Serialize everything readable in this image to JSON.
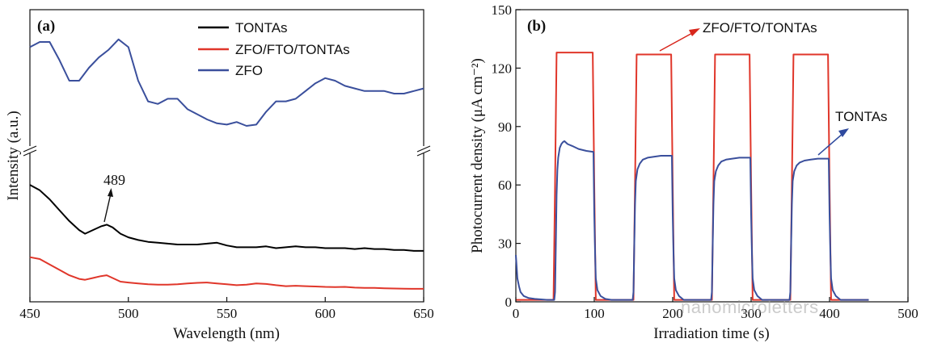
{
  "watermark": "nanomicroletters",
  "colors": {
    "black": "#000000",
    "red": "#e0362a",
    "blue": "#3a4f9c",
    "arrow_red": "#d8261c",
    "arrow_blue": "#2f4a9e"
  },
  "chart_data": [
    {
      "type": "line",
      "panel_label": "(a)",
      "xlabel": "Wavelength (nm)",
      "ylabel": "Intensity (a.u.)",
      "xlim": [
        450,
        650
      ],
      "xticks": [
        450,
        500,
        550,
        600,
        650
      ],
      "xtick_labels": [
        "450",
        "500",
        "550",
        "600",
        "650"
      ],
      "y_ticks_shown": false,
      "axis_break": true,
      "legend_position": "top-right",
      "annotation": {
        "text": "489",
        "x": 489
      },
      "series": [
        {
          "name": "TONTAs",
          "color": "#000000",
          "x": [
            450,
            455,
            460,
            465,
            470,
            475,
            478,
            482,
            486,
            489,
            492,
            496,
            500,
            505,
            510,
            515,
            520,
            525,
            530,
            535,
            540,
            545,
            550,
            555,
            560,
            565,
            570,
            575,
            580,
            585,
            590,
            595,
            600,
            605,
            610,
            615,
            620,
            625,
            630,
            635,
            640,
            645,
            650
          ],
          "y": [
            0.62,
            0.59,
            0.54,
            0.48,
            0.42,
            0.37,
            0.35,
            0.37,
            0.39,
            0.4,
            0.385,
            0.35,
            0.33,
            0.315,
            0.305,
            0.3,
            0.295,
            0.29,
            0.29,
            0.29,
            0.295,
            0.3,
            0.285,
            0.275,
            0.275,
            0.275,
            0.28,
            0.27,
            0.275,
            0.28,
            0.275,
            0.275,
            0.27,
            0.27,
            0.27,
            0.265,
            0.27,
            0.265,
            0.265,
            0.26,
            0.26,
            0.255,
            0.255
          ]
        },
        {
          "name": "ZFO/FTO/TONTAs",
          "color": "#e0362a",
          "x": [
            450,
            455,
            460,
            465,
            470,
            475,
            478,
            482,
            486,
            489,
            492,
            496,
            500,
            505,
            510,
            515,
            520,
            525,
            530,
            535,
            540,
            545,
            550,
            555,
            560,
            565,
            570,
            575,
            580,
            585,
            590,
            595,
            600,
            605,
            610,
            615,
            620,
            625,
            630,
            635,
            640,
            645,
            650
          ],
          "y": [
            0.22,
            0.21,
            0.18,
            0.15,
            0.12,
            0.1,
            0.095,
            0.105,
            0.115,
            0.12,
            0.105,
            0.085,
            0.08,
            0.075,
            0.07,
            0.068,
            0.068,
            0.07,
            0.075,
            0.078,
            0.08,
            0.075,
            0.07,
            0.065,
            0.068,
            0.075,
            0.072,
            0.065,
            0.06,
            0.062,
            0.06,
            0.058,
            0.056,
            0.055,
            0.056,
            0.052,
            0.05,
            0.05,
            0.048,
            0.047,
            0.046,
            0.045,
            0.045
          ]
        },
        {
          "name": "ZFO",
          "color": "#3a4f9c",
          "x": [
            450,
            455,
            460,
            465,
            470,
            475,
            480,
            485,
            490,
            495,
            500,
            505,
            510,
            515,
            520,
            525,
            530,
            535,
            540,
            545,
            550,
            555,
            560,
            565,
            570,
            575,
            580,
            585,
            590,
            595,
            600,
            605,
            610,
            615,
            620,
            625,
            630,
            635,
            640,
            645,
            650
          ],
          "y": [
            0.38,
            0.4,
            0.4,
            0.33,
            0.25,
            0.25,
            0.3,
            0.34,
            0.37,
            0.41,
            0.38,
            0.25,
            0.17,
            0.16,
            0.18,
            0.18,
            0.14,
            0.12,
            0.1,
            0.085,
            0.08,
            0.09,
            0.075,
            0.08,
            0.13,
            0.17,
            0.17,
            0.18,
            0.21,
            0.24,
            0.26,
            0.25,
            0.23,
            0.22,
            0.21,
            0.21,
            0.21,
            0.2,
            0.2,
            0.21,
            0.22
          ]
        }
      ]
    },
    {
      "type": "line",
      "panel_label": "(b)",
      "xlabel": "Irradiation time (s)",
      "ylabel": "Photocurrent density (μA cm⁻²)",
      "xlim": [
        0,
        500
      ],
      "ylim": [
        0,
        150
      ],
      "xticks": [
        0,
        100,
        200,
        300,
        400,
        500
      ],
      "xtick_labels": [
        "0",
        "100",
        "200",
        "300",
        "400",
        "500"
      ],
      "yticks": [
        0,
        30,
        60,
        90,
        120,
        150
      ],
      "ytick_labels": [
        "0",
        "30",
        "60",
        "90",
        "120",
        "150"
      ],
      "annotations": [
        {
          "text": "ZFO/FTO/TONTAs",
          "target_x": 178,
          "target_y": 128
        },
        {
          "text": "TONTAs",
          "target_x": 378,
          "target_y": 75
        }
      ],
      "series": [
        {
          "name": "ZFO/FTO/TONTAs",
          "color": "#e0362a",
          "x": [
            0,
            48,
            50,
            52,
            98,
            100,
            102,
            150,
            152,
            154,
            198,
            200,
            202,
            250,
            252,
            254,
            298,
            300,
            302,
            350,
            352,
            354,
            398,
            400,
            402,
            450
          ],
          "y": [
            1,
            1,
            60,
            128,
            128,
            60,
            1,
            1,
            60,
            127,
            127,
            60,
            1,
            1,
            60,
            127,
            127,
            60,
            1,
            1,
            60,
            127,
            127,
            60,
            1,
            1
          ]
        },
        {
          "name": "TONTAs",
          "color": "#3a4f9c",
          "x": [
            0,
            1,
            2,
            4,
            6,
            10,
            16,
            24,
            40,
            49,
            50,
            51,
            52,
            53,
            54,
            56,
            58,
            60,
            62,
            66,
            72,
            80,
            90,
            99,
            100,
            101,
            102,
            104,
            108,
            114,
            122,
            149,
            150,
            151,
            152,
            153,
            155,
            158,
            162,
            168,
            176,
            185,
            199,
            200,
            201,
            202,
            204,
            208,
            214,
            249,
            250,
            251,
            252,
            253,
            255,
            258,
            262,
            268,
            276,
            285,
            299,
            300,
            301,
            302,
            304,
            308,
            314,
            349,
            350,
            351,
            352,
            353,
            355,
            358,
            362,
            368,
            376,
            385,
            399,
            400,
            401,
            402,
            404,
            408,
            414,
            450
          ],
          "y": [
            24,
            18,
            12,
            8,
            5,
            3,
            2,
            1.5,
            1,
            1,
            5,
            30,
            55,
            68,
            74,
            79,
            81,
            82,
            82.5,
            81,
            80,
            78.5,
            77.5,
            77,
            45,
            25,
            12,
            6,
            3,
            1.5,
            1,
            1,
            5,
            30,
            50,
            62,
            68,
            71,
            73,
            74,
            74.5,
            75,
            75,
            45,
            25,
            12,
            6,
            3,
            1,
            1,
            5,
            30,
            50,
            62,
            67,
            70,
            72,
            73,
            73.5,
            74,
            74,
            45,
            25,
            12,
            6,
            3,
            1,
            1,
            5,
            30,
            50,
            62,
            67,
            70,
            71.5,
            72.5,
            73,
            73.5,
            73.5,
            45,
            25,
            12,
            6,
            3,
            1,
            1
          ]
        }
      ]
    }
  ]
}
